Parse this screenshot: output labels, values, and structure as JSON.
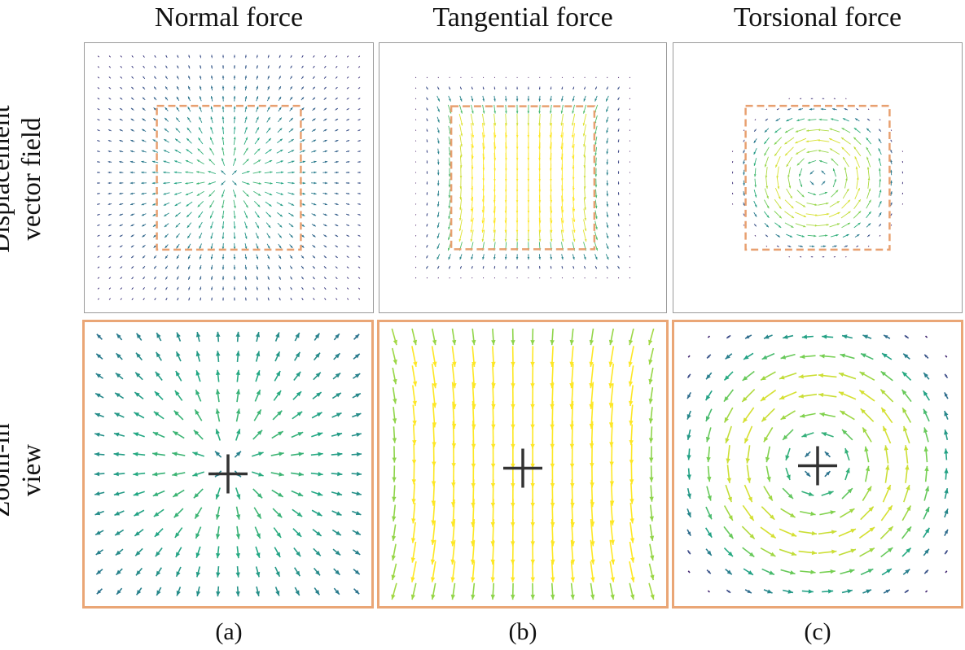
{
  "columns": [
    {
      "title": "Normal force",
      "field": "normal",
      "caption": "(a)"
    },
    {
      "title": "Tangential force",
      "field": "tangential",
      "caption": "(b)"
    },
    {
      "title": "Torsional force",
      "field": "torsional",
      "caption": "(c)"
    }
  ],
  "rows": {
    "top": {
      "line1": "Displacement",
      "line2": "vector field"
    },
    "bottom": {
      "line1": "Zoom-in",
      "line2": "view"
    }
  },
  "colors": {
    "frame_top": "#9a9a9a",
    "zoom_frame": "#eaa676",
    "dashed_region": "#e8a070",
    "marker": "#333333",
    "colormap": "viridis"
  }
}
